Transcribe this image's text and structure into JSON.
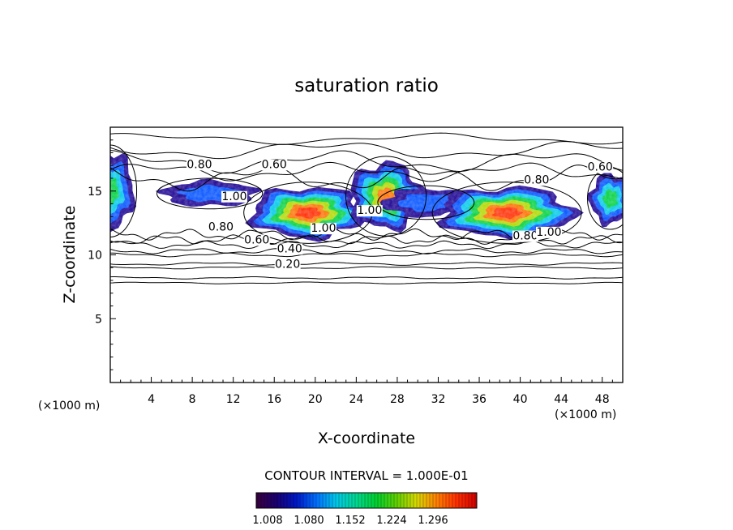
{
  "chart_data": {
    "type": "contour",
    "title": "saturation ratio",
    "xlabel": "X-coordinate",
    "ylabel": "Z-coordinate",
    "x_unit": "(×1000 m)",
    "z_unit": "(×1000 m)",
    "xlim": [
      0,
      50
    ],
    "ylim": [
      0,
      20
    ],
    "x_ticks": [
      4,
      8,
      12,
      16,
      20,
      24,
      28,
      32,
      36,
      40,
      44,
      48
    ],
    "y_ticks": [
      5,
      10,
      15
    ],
    "contour_interval_text": "CONTOUR INTERVAL = 1.000E-01",
    "contour_labels": [
      {
        "text": "0.80",
        "x": 8.7,
        "z": 16.8
      },
      {
        "text": "0.60",
        "x": 16.0,
        "z": 16.8
      },
      {
        "text": "1.00",
        "x": 12.1,
        "z": 14.3
      },
      {
        "text": "0.80",
        "x": 10.8,
        "z": 11.9
      },
      {
        "text": "0.60",
        "x": 14.3,
        "z": 10.9
      },
      {
        "text": "1.00",
        "x": 20.8,
        "z": 11.8
      },
      {
        "text": "0.40",
        "x": 17.5,
        "z": 10.2
      },
      {
        "text": "0.20",
        "x": 17.3,
        "z": 9.0
      },
      {
        "text": "1.00",
        "x": 25.3,
        "z": 13.2
      },
      {
        "text": "0.80",
        "x": 40.5,
        "z": 11.2
      },
      {
        "text": "1.00",
        "x": 42.8,
        "z": 11.5
      },
      {
        "text": "0.80",
        "x": 41.6,
        "z": 15.6
      },
      {
        "text": "0.60",
        "x": 47.8,
        "z": 16.6
      }
    ],
    "shaded_regions": [
      {
        "x": 0.0,
        "z": 15.0,
        "rx": 2.3,
        "rz": 3.0,
        "level": 0.45
      },
      {
        "x": 9.7,
        "z": 14.8,
        "rx": 4.6,
        "rz": 1.0,
        "level": 0.3
      },
      {
        "x": 19.3,
        "z": 13.3,
        "rx": 5.6,
        "rz": 2.0,
        "level": 0.9
      },
      {
        "x": 26.9,
        "z": 14.6,
        "rx": 3.5,
        "rz": 2.6,
        "level": 0.75
      },
      {
        "x": 30.8,
        "z": 14.1,
        "rx": 4.2,
        "rz": 1.1,
        "level": 0.2
      },
      {
        "x": 38.7,
        "z": 13.3,
        "rx": 6.5,
        "rz": 2.0,
        "level": 0.85
      },
      {
        "x": 48.8,
        "z": 14.4,
        "rx": 2.0,
        "rz": 2.0,
        "level": 0.55
      }
    ],
    "colorbar": {
      "ticks": [
        "1.008",
        "1.080",
        "1.152",
        "1.224",
        "1.296"
      ],
      "colors": [
        "#3a0040",
        "#1a0070",
        "#0018c8",
        "#0070ff",
        "#00c8e8",
        "#00d890",
        "#00d030",
        "#60d000",
        "#d8d800",
        "#ff8000",
        "#ff3000",
        "#d00000"
      ]
    }
  }
}
